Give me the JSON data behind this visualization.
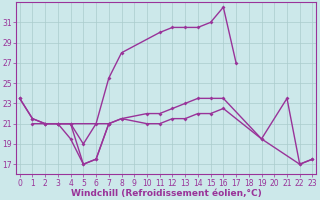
{
  "background_color": "#cce8ea",
  "grid_color": "#aacccc",
  "line_color": "#993399",
  "marker": "D",
  "marker_size": 2.0,
  "line_width": 1.0,
  "xlim_min": -0.3,
  "xlim_max": 23.3,
  "ylim_min": 16.0,
  "ylim_max": 33.0,
  "yticks": [
    17,
    19,
    21,
    23,
    25,
    27,
    29,
    31
  ],
  "xticks": [
    0,
    1,
    2,
    3,
    4,
    5,
    6,
    7,
    8,
    9,
    10,
    11,
    12,
    13,
    14,
    15,
    16,
    17,
    18,
    19,
    20,
    21,
    22,
    23
  ],
  "xlabel": "Windchill (Refroidissement éolien,°C)",
  "xlabel_fontsize": 6.5,
  "tick_fontsize": 5.5,
  "line1_x": [
    0,
    1,
    2,
    3,
    4,
    5,
    6,
    7,
    8,
    11,
    12,
    13,
    14,
    15,
    16,
    17
  ],
  "line1_y": [
    23.5,
    21.5,
    21.0,
    21.0,
    21.0,
    19.0,
    21.0,
    25.5,
    28.0,
    30.0,
    30.5,
    30.5,
    30.5,
    31.0,
    32.5,
    27.0
  ],
  "line2_x": [
    0,
    1,
    2,
    3,
    4,
    5,
    6,
    7
  ],
  "line2_y": [
    23.5,
    21.5,
    21.0,
    21.0,
    21.0,
    17.0,
    17.5,
    21.0
  ],
  "line3_x": [
    1,
    2,
    3,
    4,
    5,
    6,
    7,
    8,
    10,
    11,
    12,
    13,
    14,
    15,
    16,
    19,
    21,
    22,
    23
  ],
  "line3_y": [
    21.0,
    21.0,
    21.0,
    19.5,
    17.0,
    17.5,
    21.0,
    21.5,
    22.0,
    22.0,
    22.5,
    23.0,
    23.5,
    23.5,
    23.5,
    19.5,
    23.5,
    17.0,
    17.5
  ],
  "line4_x": [
    3,
    7,
    8,
    10,
    11,
    12,
    13,
    14,
    15,
    16,
    19,
    22,
    23
  ],
  "line4_y": [
    21.0,
    21.0,
    21.5,
    21.0,
    21.0,
    21.5,
    21.5,
    22.0,
    22.0,
    22.5,
    19.5,
    17.0,
    17.5
  ]
}
